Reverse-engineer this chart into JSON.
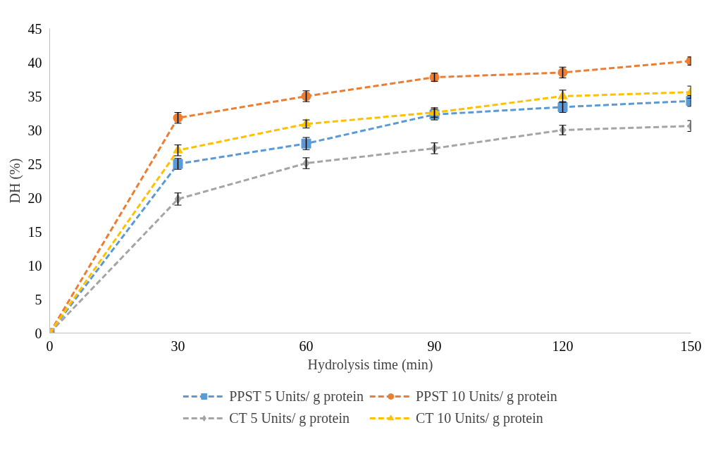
{
  "chart_data": {
    "type": "line",
    "xlabel": "Hydrolysis time (min)",
    "ylabel": "DH (%)",
    "x": [
      0,
      30,
      60,
      90,
      120,
      150
    ],
    "xlim": [
      0,
      150
    ],
    "xticks": [
      0,
      30,
      60,
      90,
      120,
      150
    ],
    "ylim": [
      0,
      45
    ],
    "yticks": [
      0,
      5,
      10,
      15,
      20,
      25,
      30,
      35,
      40,
      45
    ],
    "grid": false,
    "legend": "bottom",
    "series": [
      {
        "name": "PPST 5 Units/ g protein",
        "color": "#5b9bd5",
        "marker": "square",
        "line_style": "dashed",
        "values": [
          0,
          25,
          28,
          32.3,
          33.4,
          34.3
        ],
        "errors": [
          null,
          0.8,
          0.9,
          0.8,
          0.8,
          0.8
        ]
      },
      {
        "name": "PPST 10 Units/ g protein",
        "color": "#ed7d31",
        "marker": "circle",
        "line_style": "dashed",
        "values": [
          0,
          31.8,
          35,
          37.8,
          38.5,
          40.2
        ],
        "errors": [
          null,
          0.8,
          0.8,
          0.6,
          0.8,
          0.6
        ]
      },
      {
        "name": "CT 5 Units/ g protein",
        "color": "#a5a5a5",
        "marker": "diamond",
        "line_style": "dashed",
        "values": [
          0,
          19.8,
          25.1,
          27.3,
          30,
          30.6
        ],
        "errors": [
          null,
          0.9,
          0.8,
          0.8,
          0.7,
          0.8
        ]
      },
      {
        "name": "CT 10 Units/ g protein",
        "color": "#ffc000",
        "marker": "triangle",
        "line_style": "dashed",
        "values": [
          0,
          27,
          30.9,
          32.6,
          35,
          35.6
        ],
        "errors": [
          null,
          0.8,
          0.6,
          0.7,
          0.9,
          0.9
        ]
      }
    ]
  }
}
